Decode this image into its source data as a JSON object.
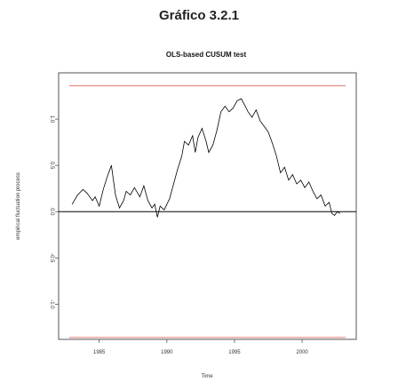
{
  "figure": {
    "title": "Gráfico 3.2.1"
  },
  "chart_data": {
    "type": "line",
    "title": "OLS-based CUSUM test",
    "xlabel": "Time",
    "ylabel": "empirical fluctuation process",
    "xlim": [
      1982,
      2004
    ],
    "ylim": [
      -1.38,
      1.5
    ],
    "x_ticks": [
      1985,
      1990,
      1995,
      2000
    ],
    "x_tick_labels": [
      "1985",
      "1990",
      "1995",
      "2000"
    ],
    "y_ticks": [
      -1.0,
      -0.5,
      0.0,
      0.5,
      1.0
    ],
    "y_tick_labels": [
      "-1.0",
      "-0.5",
      "0.0",
      "0.5",
      "1.0"
    ],
    "boundaries": [
      1.36,
      -1.36
    ],
    "zero_line": 0,
    "colors": {
      "series": "#000000",
      "boundary": "#e07a6e",
      "frame": "#555555"
    },
    "series": [
      {
        "values_x": [
          1983,
          1983.4,
          1983.8,
          1984.1,
          1984.5,
          1984.7,
          1985.0,
          1985.3,
          1985.6,
          1985.9,
          1986.2,
          1986.5,
          1986.8,
          1987.0,
          1987.3,
          1987.6,
          1988.0,
          1988.3,
          1988.6,
          1988.9,
          1989.1,
          1989.3,
          1989.5,
          1989.8,
          1990.2,
          1990.5,
          1990.8,
          1991.1,
          1991.3,
          1991.6,
          1991.9,
          1992.1,
          1992.3,
          1992.6,
          1992.9,
          1993.1,
          1993.4,
          1993.7,
          1994.0,
          1994.3,
          1994.6,
          1994.9,
          1995.2,
          1995.5,
          1995.8,
          1996.0,
          1996.3,
          1996.6,
          1996.9,
          1997.2,
          1997.5,
          1997.8,
          1998.1,
          1998.4,
          1998.7,
          1999.0,
          1999.3,
          1999.6,
          1999.9,
          2000.2,
          2000.5,
          2000.8,
          2001.1,
          2001.4,
          2001.7,
          2002.0,
          2002.2,
          2002.4,
          2002.6,
          2002.8
        ],
        "values_y": [
          0.08,
          0.18,
          0.24,
          0.2,
          0.12,
          0.16,
          0.06,
          0.24,
          0.38,
          0.5,
          0.18,
          0.04,
          0.12,
          0.22,
          0.18,
          0.26,
          0.16,
          0.28,
          0.12,
          0.04,
          0.08,
          -0.06,
          0.06,
          0.02,
          0.14,
          0.3,
          0.46,
          0.6,
          0.76,
          0.72,
          0.82,
          0.64,
          0.8,
          0.9,
          0.76,
          0.64,
          0.72,
          0.88,
          1.08,
          1.14,
          1.08,
          1.12,
          1.2,
          1.22,
          1.14,
          1.08,
          1.02,
          1.1,
          0.98,
          0.92,
          0.86,
          0.74,
          0.6,
          0.42,
          0.48,
          0.34,
          0.4,
          0.3,
          0.34,
          0.26,
          0.32,
          0.22,
          0.14,
          0.18,
          0.06,
          0.1,
          -0.02,
          -0.04,
          0.0,
          -0.02
        ]
      }
    ]
  }
}
